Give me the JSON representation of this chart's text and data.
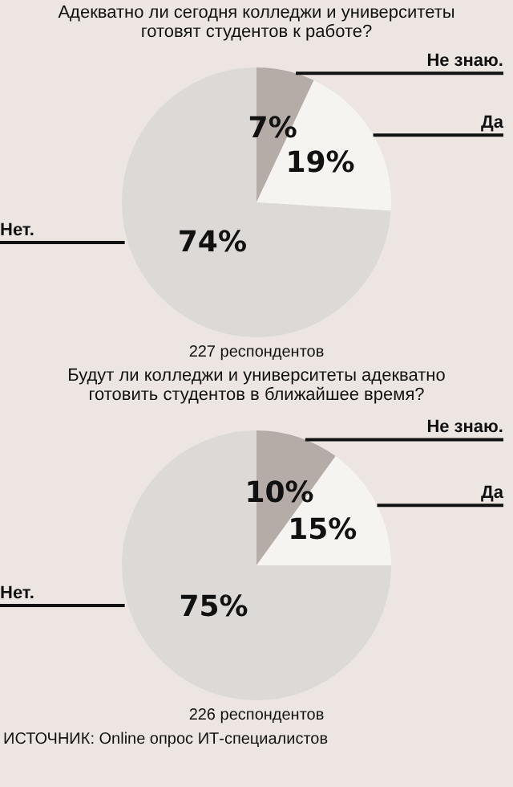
{
  "chart_data": [
    {
      "type": "pie",
      "title": "Адекватно ли сегодня колледжи и университеты готовят студентов к работе?",
      "categories": [
        "Не знаю.",
        "Да",
        "Нет."
      ],
      "values": [
        7,
        19,
        74
      ],
      "value_labels": [
        "7%",
        "19%",
        "74%"
      ],
      "colors": [
        "#b6aca7",
        "#f6f4f0",
        "#dcd9d7"
      ],
      "annotations": [
        "227 респондентов"
      ]
    },
    {
      "type": "pie",
      "title": "Будут ли колледжи и университеты адекватно готовить студентов в ближайшее время?",
      "categories": [
        "Не знаю.",
        "Да",
        "Нет."
      ],
      "values": [
        10,
        15,
        75
      ],
      "value_labels": [
        "10%",
        "15%",
        "75%"
      ],
      "colors": [
        "#b6aca7",
        "#f6f4f0",
        "#dcd9d7"
      ],
      "annotations": [
        "226 респондентов",
        "ИСТОЧНИК: Online опрос ИТ-специалистов"
      ]
    }
  ]
}
